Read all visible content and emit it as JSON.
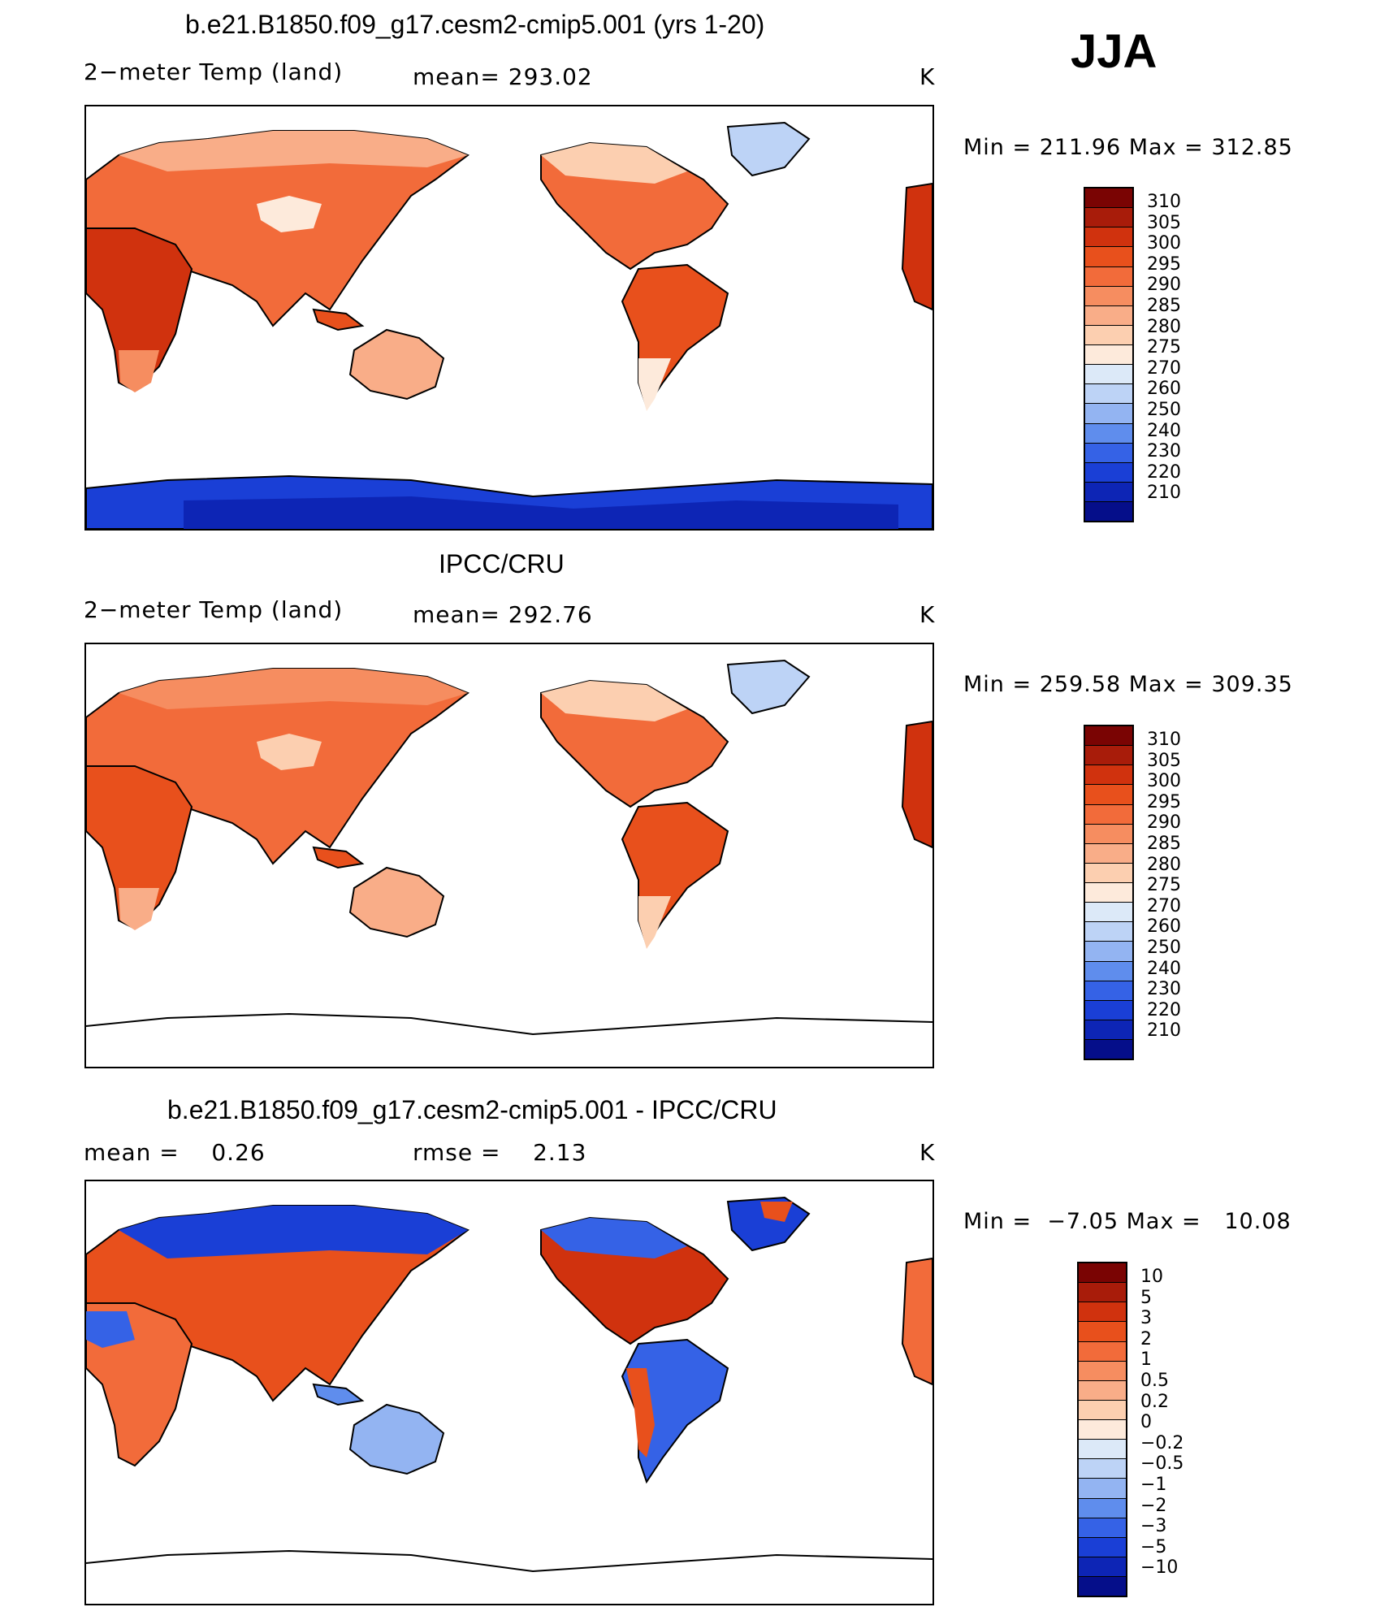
{
  "season": "JJA",
  "panels": [
    {
      "title": "b.e21.B1850.f09_g17.cesm2-cmip5.001 (yrs 1-20)",
      "left_label": "2−meter Temp (land)",
      "center_label": "mean= 293.02",
      "unit": "K",
      "minmax": "Min = 211.96 Max = 312.85",
      "colorbar_ticks": [
        "310",
        "305",
        "300",
        "295",
        "290",
        "285",
        "280",
        "275",
        "270",
        "260",
        "250",
        "240",
        "230",
        "220",
        "210"
      ]
    },
    {
      "title": "IPCC/CRU",
      "left_label": "2−meter Temp (land)",
      "center_label": "mean= 292.76",
      "unit": "K",
      "minmax": "Min = 259.58 Max = 309.35",
      "colorbar_ticks": [
        "310",
        "305",
        "300",
        "295",
        "290",
        "285",
        "280",
        "275",
        "270",
        "260",
        "250",
        "240",
        "230",
        "220",
        "210"
      ]
    },
    {
      "title": "b.e21.B1850.f09_g17.cesm2-cmip5.001 - IPCC/CRU",
      "left_label": "mean =    0.26",
      "center_label": "rmse =    2.13",
      "unit": "K",
      "minmax": "Min =  −7.05 Max =   10.08",
      "colorbar_ticks": [
        "10",
        "5",
        "3",
        "2",
        "1",
        "0.5",
        "0.2",
        "0",
        "−0.2",
        "−0.5",
        "−1",
        "−2",
        "−3",
        "−5",
        "−10"
      ]
    }
  ],
  "colors": {
    "temp_scale": [
      "#7a0403",
      "#a81c0a",
      "#d0320e",
      "#e8501c",
      "#f26b3a",
      "#f68d60",
      "#f9ad88",
      "#fccfb0",
      "#fdeadb",
      "#dce9f8",
      "#bdd3f6",
      "#93b4f2",
      "#5f8ded",
      "#3562e6",
      "#1a3fd6",
      "#0d25b5",
      "#050e8a"
    ],
    "diff_scale": [
      "#7a0403",
      "#a81c0a",
      "#d0320e",
      "#e8501c",
      "#f26b3a",
      "#f68d60",
      "#f9ad88",
      "#fccfb0",
      "#fdeadb",
      "#dce9f8",
      "#bdd3f6",
      "#93b4f2",
      "#5f8ded",
      "#3562e6",
      "#1a3fd6",
      "#0d25b5",
      "#050e8a"
    ]
  }
}
